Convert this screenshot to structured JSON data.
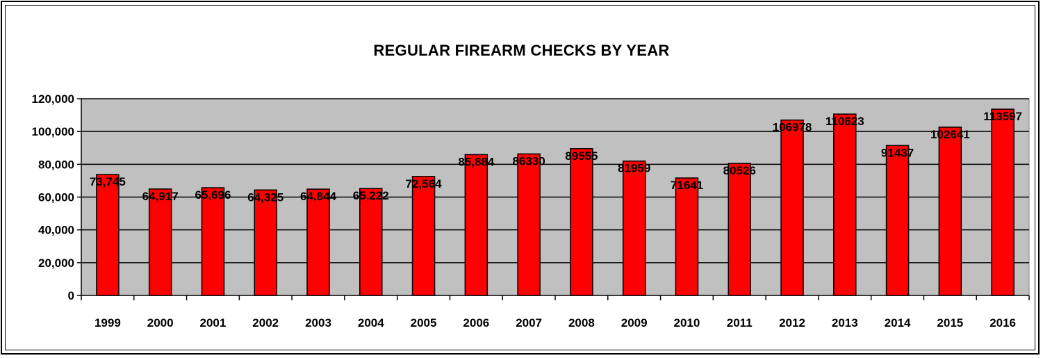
{
  "chart_data": {
    "type": "bar",
    "title": "REGULAR FIREARM CHECKS BY YEAR",
    "xlabel": "",
    "ylabel": "",
    "categories": [
      "1999",
      "2000",
      "2001",
      "2002",
      "2003",
      "2004",
      "2005",
      "2006",
      "2007",
      "2008",
      "2009",
      "2010",
      "2011",
      "2012",
      "2013",
      "2014",
      "2015",
      "2016"
    ],
    "values": [
      73745,
      64917,
      65696,
      64325,
      64844,
      65222,
      72564,
      85884,
      86330,
      89555,
      81959,
      71641,
      80526,
      106978,
      110623,
      91437,
      102641,
      113597
    ],
    "data_labels": [
      "73,745",
      "64,917",
      "65,696",
      "64,325",
      "64,844",
      "65,222",
      "72,564",
      "85,884",
      "86330",
      "89555",
      "81959",
      "71641",
      "80526",
      "106978",
      "110623",
      "91437",
      "102641",
      "113597"
    ],
    "ylim": [
      0,
      120000
    ],
    "yticks": [
      0,
      20000,
      40000,
      60000,
      80000,
      100000,
      120000
    ],
    "ytick_labels": [
      "0",
      "20,000",
      "40,000",
      "60,000",
      "80,000",
      "100,000",
      "120,000"
    ],
    "grid": true,
    "legend": "none",
    "colors": {
      "bar": "#ff0000",
      "plot_background": "#c0c0c0",
      "gridline": "#000000"
    }
  }
}
